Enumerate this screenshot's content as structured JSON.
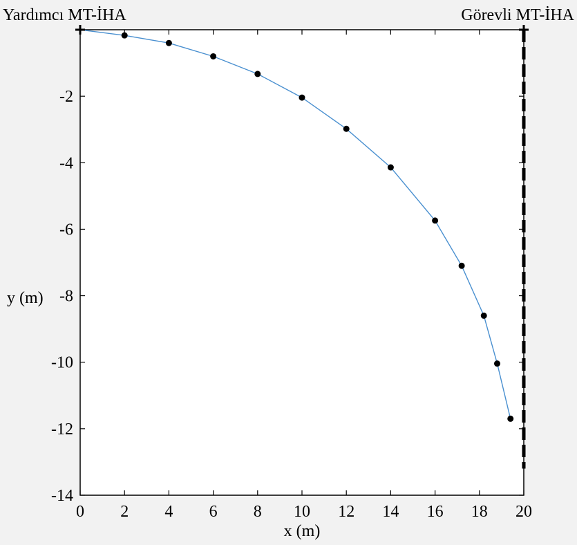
{
  "chart_data": {
    "type": "line",
    "xlabel": "x (m)",
    "ylabel": "y (m)",
    "xlim": [
      0,
      20
    ],
    "ylim": [
      -14,
      0
    ],
    "grid": false,
    "x_ticks": [
      0,
      2,
      4,
      6,
      8,
      10,
      12,
      14,
      16,
      18,
      20
    ],
    "y_ticks": [
      -2,
      -4,
      -6,
      -8,
      -10,
      -12,
      -14
    ],
    "series": [
      {
        "color": "#4a90d0",
        "style": "solid-line",
        "x": [
          0,
          2,
          4,
          6,
          8,
          10,
          12,
          14,
          16,
          17.2,
          18.2,
          18.8,
          19.4
        ],
        "y": [
          0,
          -0.17,
          -0.4,
          -0.8,
          -1.33,
          -2.04,
          -2.98,
          -4.14,
          -5.74,
          -7.1,
          -8.6,
          -10.04,
          -11.7
        ]
      },
      {
        "color": "#000000",
        "style": "markers",
        "x": [
          2,
          4,
          6,
          8,
          10,
          12,
          14,
          16,
          17.2,
          18.2,
          18.8,
          19.4
        ],
        "y": [
          -0.17,
          -0.4,
          -0.8,
          -1.33,
          -2.04,
          -2.98,
          -4.14,
          -5.74,
          -7.1,
          -8.6,
          -10.04,
          -11.7
        ]
      },
      {
        "color": "#000000",
        "style": "dashed-line",
        "x": [
          20,
          20
        ],
        "y": [
          0,
          -13.2
        ]
      }
    ],
    "annotations": [
      {
        "text": "Yardımcı MT-İHA",
        "x": 0,
        "y": 0,
        "marker": "plus"
      },
      {
        "text": "Görevli MT-İHA",
        "x": 20,
        "y": 0,
        "marker": "plus"
      }
    ]
  }
}
